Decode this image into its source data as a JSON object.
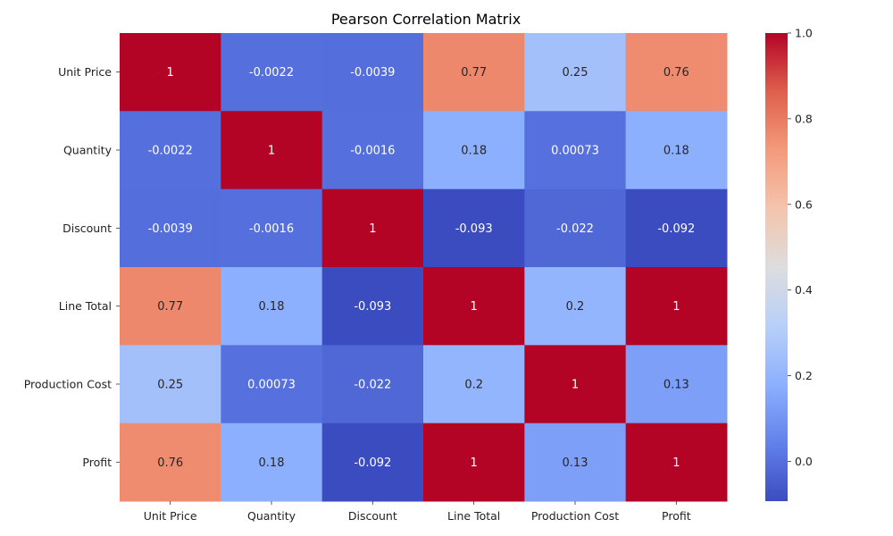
{
  "chart_data": {
    "type": "heatmap",
    "title": "Pearson Correlation Matrix",
    "xlabel": "",
    "ylabel": "",
    "rows": [
      "Unit Price",
      "Quantity",
      "Discount",
      "Line Total",
      "Production Cost",
      "Profit"
    ],
    "cols": [
      "Unit Price",
      "Quantity",
      "Discount",
      "Line Total",
      "Production Cost",
      "Profit"
    ],
    "values": [
      [
        1,
        -0.0022,
        -0.0039,
        0.77,
        0.25,
        0.76
      ],
      [
        -0.0022,
        1,
        -0.0016,
        0.18,
        0.00073,
        0.18
      ],
      [
        -0.0039,
        -0.0016,
        1,
        -0.093,
        -0.022,
        -0.092
      ],
      [
        0.77,
        0.18,
        -0.093,
        1,
        0.2,
        1
      ],
      [
        0.25,
        0.00073,
        -0.022,
        0.2,
        1,
        0.13
      ],
      [
        0.76,
        0.18,
        -0.092,
        1,
        0.13,
        1
      ]
    ],
    "labels": [
      [
        "1",
        "-0.0022",
        "-0.0039",
        "0.77",
        "0.25",
        "0.76"
      ],
      [
        "-0.0022",
        "1",
        "-0.0016",
        "0.18",
        "0.00073",
        "0.18"
      ],
      [
        "-0.0039",
        "-0.0016",
        "1",
        "-0.093",
        "-0.022",
        "-0.092"
      ],
      [
        "0.77",
        "0.18",
        "-0.093",
        "1",
        "0.2",
        "1"
      ],
      [
        "0.25",
        "0.00073",
        "-0.022",
        "0.2",
        "1",
        "0.13"
      ],
      [
        "0.76",
        "0.18",
        "-0.092",
        "1",
        "0.13",
        "1"
      ]
    ],
    "colormap": "coolwarm",
    "vmin": -0.093,
    "vmax": 1.0,
    "colorbar_ticks": [
      "0.0",
      "0.2",
      "0.4",
      "0.6",
      "0.8",
      "1.0"
    ],
    "colorbar_tick_values": [
      0.0,
      0.2,
      0.4,
      0.6,
      0.8,
      1.0
    ],
    "grid": false,
    "legend": "colorbar-right"
  }
}
